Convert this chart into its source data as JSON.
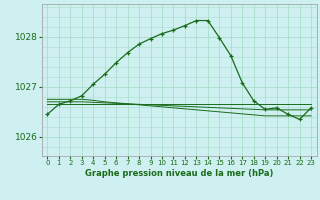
{
  "bg_color": "#cff0f0",
  "grid_color": "#aaddcc",
  "line_color": "#1a6b1a",
  "ylim": [
    1025.62,
    1028.65
  ],
  "yticks": [
    1026,
    1027,
    1028
  ],
  "hours": [
    0,
    1,
    2,
    3,
    4,
    5,
    6,
    7,
    8,
    9,
    10,
    11,
    12,
    13,
    14,
    15,
    16,
    17,
    18,
    19,
    20,
    21,
    22,
    23
  ],
  "main_line": [
    1026.45,
    1026.65,
    1026.72,
    1026.82,
    1027.05,
    1027.25,
    1027.48,
    1027.68,
    1027.85,
    1027.96,
    1028.06,
    1028.13,
    1028.22,
    1028.32,
    1028.32,
    1027.98,
    1027.62,
    1027.08,
    1026.72,
    1026.55,
    1026.58,
    1026.45,
    1026.35,
    1026.58
  ],
  "flat_line1": [
    1026.75,
    1026.75,
    1026.75,
    1026.75,
    1026.73,
    1026.7,
    1026.68,
    1026.66,
    1026.64,
    1026.62,
    1026.6,
    1026.58,
    1026.56,
    1026.54,
    1026.52,
    1026.5,
    1026.48,
    1026.46,
    1026.44,
    1026.42,
    1026.42,
    1026.42,
    1026.42,
    1026.42
  ],
  "flat_line2": [
    1026.7,
    1026.7,
    1026.7,
    1026.7,
    1026.69,
    1026.68,
    1026.67,
    1026.66,
    1026.65,
    1026.64,
    1026.63,
    1026.62,
    1026.61,
    1026.6,
    1026.59,
    1026.58,
    1026.57,
    1026.56,
    1026.55,
    1026.54,
    1026.54,
    1026.54,
    1026.54,
    1026.54
  ],
  "flat_line3": [
    1026.66,
    1026.66,
    1026.66,
    1026.66,
    1026.66,
    1026.66,
    1026.66,
    1026.66,
    1026.66,
    1026.66,
    1026.66,
    1026.66,
    1026.66,
    1026.66,
    1026.66,
    1026.66,
    1026.66,
    1026.66,
    1026.66,
    1026.66,
    1026.66,
    1026.66,
    1026.66,
    1026.66
  ],
  "xlabel": "Graphe pression niveau de la mer (hPa)",
  "xlabel_fontsize": 6.0,
  "ytick_fontsize": 6.5,
  "xtick_fontsize": 5.0
}
